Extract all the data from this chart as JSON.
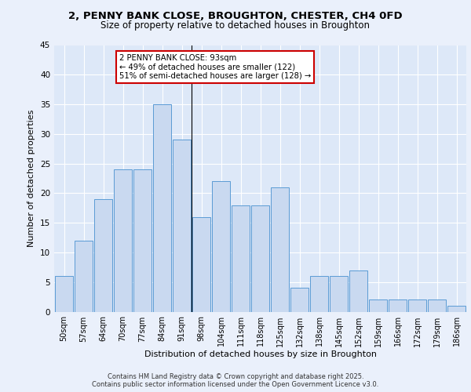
{
  "title_line1": "2, PENNY BANK CLOSE, BROUGHTON, CHESTER, CH4 0FD",
  "title_line2": "Size of property relative to detached houses in Broughton",
  "xlabel": "Distribution of detached houses by size in Broughton",
  "ylabel": "Number of detached properties",
  "categories": [
    "50sqm",
    "57sqm",
    "64sqm",
    "70sqm",
    "77sqm",
    "84sqm",
    "91sqm",
    "98sqm",
    "104sqm",
    "111sqm",
    "118sqm",
    "125sqm",
    "132sqm",
    "138sqm",
    "145sqm",
    "152sqm",
    "159sqm",
    "166sqm",
    "172sqm",
    "179sqm",
    "186sqm"
  ],
  "values": [
    6,
    12,
    19,
    24,
    24,
    35,
    29,
    16,
    22,
    18,
    18,
    21,
    4,
    6,
    6,
    7,
    2,
    2,
    2,
    2,
    1
  ],
  "bar_color": "#c9d9f0",
  "bar_edge_color": "#5b9bd5",
  "annotation_text_line1": "2 PENNY BANK CLOSE: 93sqm",
  "annotation_text_line2": "← 49% of detached houses are smaller (122)",
  "annotation_text_line3": "51% of semi-detached houses are larger (128) →",
  "annotation_box_color": "#ffffff",
  "annotation_box_edge_color": "#cc0000",
  "background_color": "#dde8f8",
  "grid_color": "#ffffff",
  "fig_background": "#eaf0fb",
  "ylim": [
    0,
    45
  ],
  "yticks": [
    0,
    5,
    10,
    15,
    20,
    25,
    30,
    35,
    40,
    45
  ],
  "footer_line1": "Contains HM Land Registry data © Crown copyright and database right 2025.",
  "footer_line2": "Contains public sector information licensed under the Open Government Licence v3.0."
}
